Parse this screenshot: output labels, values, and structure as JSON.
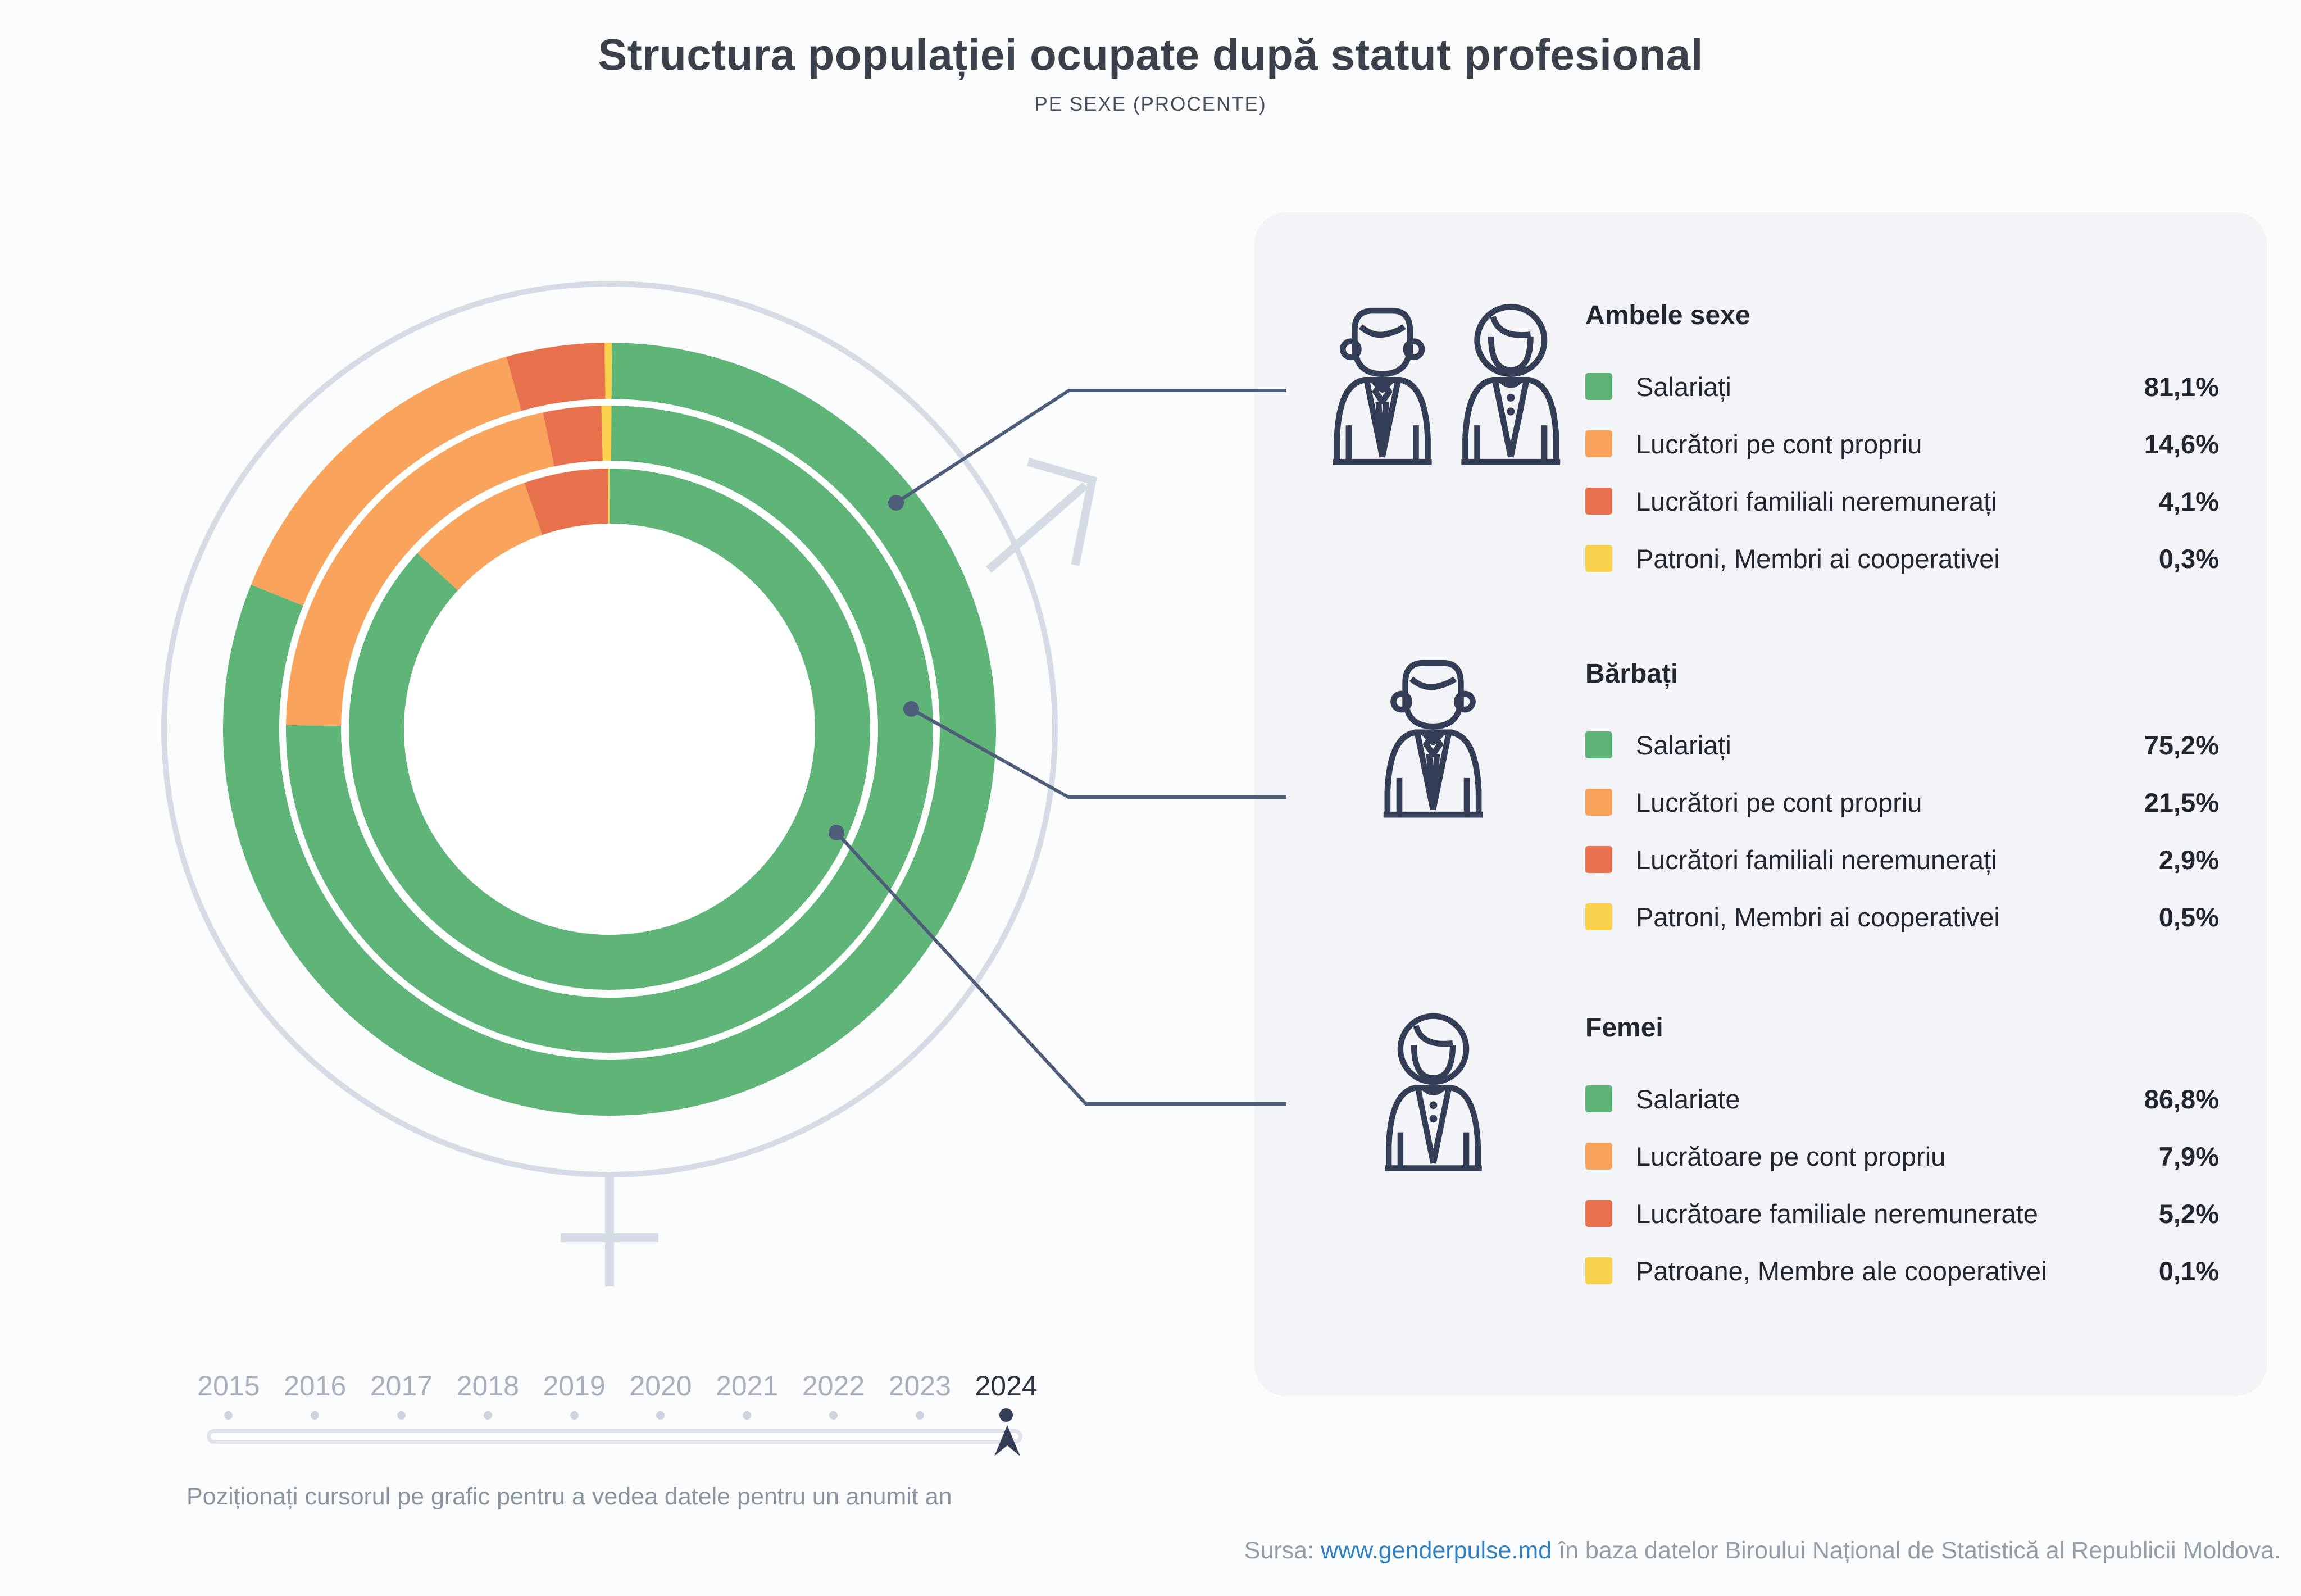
{
  "title": "Structura populației ocupate după statut profesional",
  "subtitle": "PE SEXE (PROCENTE)",
  "colors": {
    "bg": "#fbfcfd",
    "panel": "#f2f4f7",
    "green": "#5fb478",
    "orange": "#f9a35c",
    "red": "#e8714d",
    "yellow": "#fad24e",
    "navy": "#333d55",
    "line": "#4e5d79",
    "decor": "#d6dce5",
    "title": "#3a414b",
    "subtitle": "#454e59",
    "text": "#21262f",
    "year": "#a7b0bc",
    "year-active": "#2b3240",
    "muted": "#8a949f",
    "source": "#939da8",
    "link": "#2f80c0"
  },
  "chart_data": {
    "type": "donut",
    "unit": "%",
    "title": "Structura populației ocupate după statut profesional",
    "subtitle": "PE SEXE (PROCENTE)",
    "year_shown": "2024",
    "categories": [
      "Salariați",
      "Lucrători pe cont propriu",
      "Lucrători familiali neremunerați",
      "Patroni, Membri ai cooperativei"
    ],
    "palette_keys": [
      "green",
      "orange",
      "red",
      "yellow"
    ],
    "series": [
      {
        "name": "Ambele sexe",
        "ring": "outer",
        "values": [
          81.1,
          14.6,
          4.1,
          0.3
        ]
      },
      {
        "name": "Bărbați",
        "ring": "middle",
        "values": [
          75.2,
          21.5,
          2.9,
          0.5
        ]
      },
      {
        "name": "Femei",
        "ring": "inner",
        "values": [
          86.8,
          7.9,
          5.2,
          0.1
        ]
      }
    ],
    "legend_position": "right"
  },
  "legend": {
    "groups": [
      {
        "heading": "Ambele sexe",
        "icon": "man-woman",
        "rows": [
          {
            "label": "Salariați",
            "value": "81,1%",
            "color": "green"
          },
          {
            "label": "Lucrători pe cont propriu",
            "value": "14,6%",
            "color": "orange"
          },
          {
            "label": "Lucrători familiali neremunerați",
            "value": "4,1%",
            "color": "red"
          },
          {
            "label": "Patroni, Membri ai cooperativei",
            "value": "0,3%",
            "color": "yellow"
          }
        ]
      },
      {
        "heading": "Bărbați",
        "icon": "man",
        "rows": [
          {
            "label": "Salariați",
            "value": "75,2%",
            "color": "green"
          },
          {
            "label": "Lucrători pe cont propriu",
            "value": "21,5%",
            "color": "orange"
          },
          {
            "label": "Lucrători familiali neremunerați",
            "value": "2,9%",
            "color": "red"
          },
          {
            "label": "Patroni, Membri ai cooperativei",
            "value": "0,5%",
            "color": "yellow"
          }
        ]
      },
      {
        "heading": "Femei",
        "icon": "woman",
        "rows": [
          {
            "label": "Salariate",
            "value": "86,8%",
            "color": "green"
          },
          {
            "label": "Lucrătoare pe cont propriu",
            "value": "7,9%",
            "color": "orange"
          },
          {
            "label": "Lucrătoare familiale neremunerate",
            "value": "5,2%",
            "color": "red"
          },
          {
            "label": "Patroane, Membre ale cooperativei",
            "value": "0,1%",
            "color": "yellow"
          }
        ]
      }
    ]
  },
  "timeline": {
    "years": [
      "2015",
      "2016",
      "2017",
      "2018",
      "2019",
      "2020",
      "2021",
      "2022",
      "2023",
      "2024"
    ],
    "selected": "2024",
    "hint": "Poziționați cursorul pe grafic pentru a vedea datele pentru un anumit an"
  },
  "source": {
    "prefix": "Sursa:",
    "link": "www.genderpulse.md",
    "suffix": "în baza datelor Biroului Național de Statistică al Republicii Moldova."
  }
}
